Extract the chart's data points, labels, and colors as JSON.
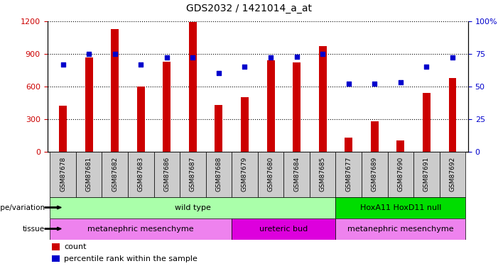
{
  "title": "GDS2032 / 1421014_a_at",
  "samples": [
    "GSM87678",
    "GSM87681",
    "GSM87682",
    "GSM87683",
    "GSM87686",
    "GSM87687",
    "GSM87688",
    "GSM87679",
    "GSM87680",
    "GSM87684",
    "GSM87685",
    "GSM87677",
    "GSM87689",
    "GSM87690",
    "GSM87691",
    "GSM87692"
  ],
  "counts": [
    420,
    870,
    1130,
    600,
    830,
    1195,
    430,
    500,
    840,
    820,
    970,
    130,
    280,
    100,
    540,
    680
  ],
  "percentiles": [
    67,
    75,
    75,
    67,
    72,
    72,
    60,
    65,
    72,
    73,
    75,
    52,
    52,
    53,
    65,
    72
  ],
  "ylim_left": [
    0,
    1200
  ],
  "ylim_right": [
    0,
    100
  ],
  "yticks_left": [
    0,
    300,
    600,
    900,
    1200
  ],
  "yticks_right": [
    0,
    25,
    50,
    75,
    100
  ],
  "bar_color": "#CC0000",
  "dot_color": "#0000CC",
  "genotype_groups": [
    {
      "label": "wild type",
      "start": 0,
      "end": 11,
      "color": "#AAFFAA"
    },
    {
      "label": "HoxA11 HoxD11 null",
      "start": 11,
      "end": 16,
      "color": "#00DD00"
    }
  ],
  "tissue_groups": [
    {
      "label": "metanephric mesenchyme",
      "start": 0,
      "end": 7,
      "color": "#EE82EE"
    },
    {
      "label": "ureteric bud",
      "start": 7,
      "end": 11,
      "color": "#DD00DD"
    },
    {
      "label": "metanephric mesenchyme",
      "start": 11,
      "end": 16,
      "color": "#EE82EE"
    }
  ],
  "bar_color_legend": "#CC0000",
  "dot_color_legend": "#0000CC",
  "tick_label_bg": "#CCCCCC",
  "left_color": "#CC0000",
  "right_color": "#0000CC"
}
